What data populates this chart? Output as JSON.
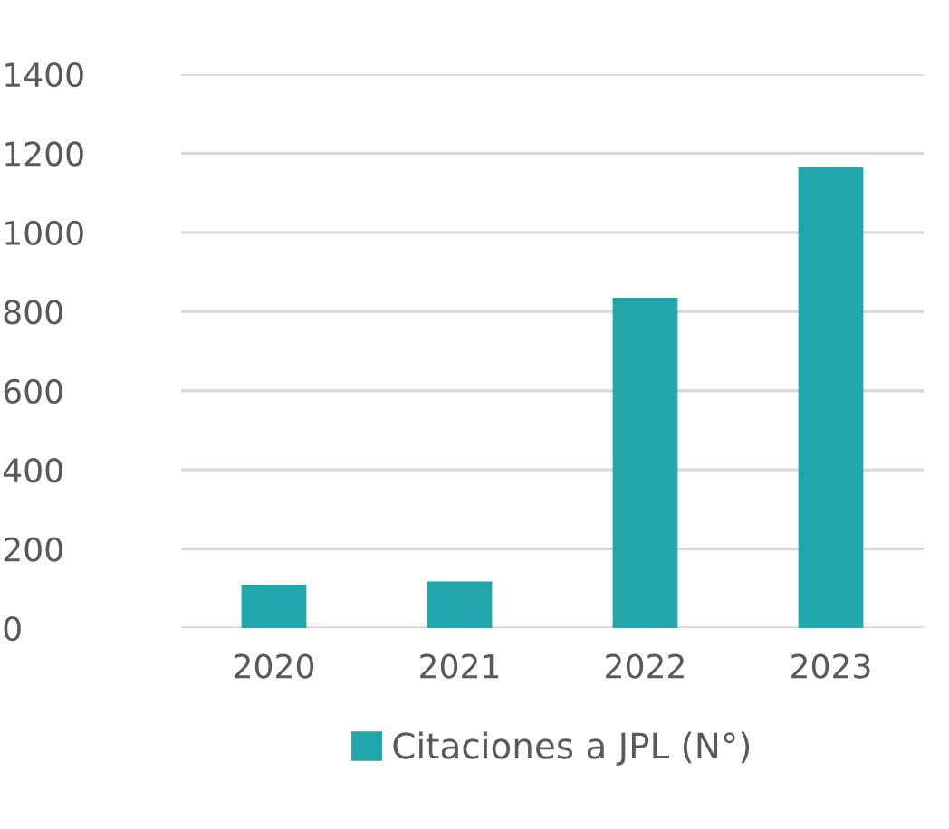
{
  "chart_data": {
    "type": "bar",
    "categories": [
      "2020",
      "2021",
      "2022",
      "2023"
    ],
    "series": [
      {
        "name": "Citaciones a JPL (N°)",
        "color": "#21a6ab",
        "values": [
          110,
          118,
          835,
          1165
        ]
      }
    ],
    "ylim": [
      0,
      1400
    ],
    "yticks": [
      0,
      200,
      400,
      600,
      800,
      1000,
      1200,
      1400
    ],
    "grid": "y",
    "legend": "bottom"
  }
}
